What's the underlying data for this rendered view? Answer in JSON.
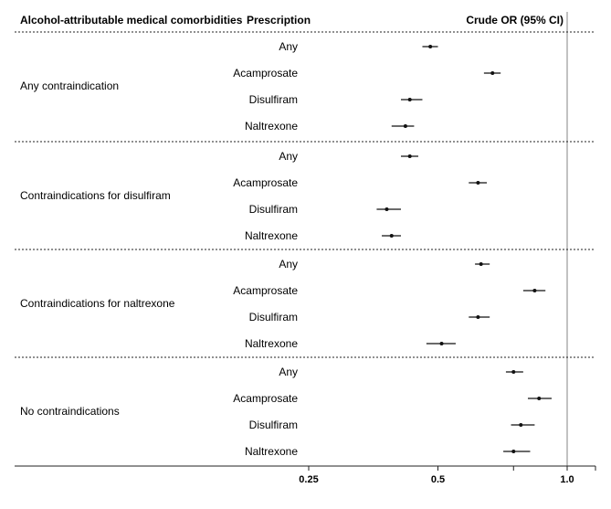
{
  "chart_data": {
    "type": "forest",
    "scale": "log",
    "headers": {
      "comorbidity": "Alcohol-attributable medical comorbidities",
      "prescription": "Prescription",
      "estimate": "Crude OR (95% CI)"
    },
    "xlim": [
      0.25,
      1.3
    ],
    "x_ticks": [
      0.25,
      0.5,
      1.0
    ],
    "x_tick_labels": [
      "0.25",
      "0.5",
      "1.0"
    ],
    "reference_line": 1.0,
    "groups": [
      {
        "label": "Any contraindication",
        "rows": [
          {
            "prescription": "Any",
            "or": 0.48,
            "lo": 0.46,
            "hi": 0.5
          },
          {
            "prescription": "Acamprosate",
            "or": 0.67,
            "lo": 0.64,
            "hi": 0.7
          },
          {
            "prescription": "Disulfiram",
            "or": 0.43,
            "lo": 0.41,
            "hi": 0.46
          },
          {
            "prescription": "Naltrexone",
            "or": 0.42,
            "lo": 0.39,
            "hi": 0.44
          }
        ]
      },
      {
        "label": "Contraindications for disulfiram",
        "rows": [
          {
            "prescription": "Any",
            "or": 0.43,
            "lo": 0.41,
            "hi": 0.45
          },
          {
            "prescription": "Acamprosate",
            "or": 0.62,
            "lo": 0.59,
            "hi": 0.65
          },
          {
            "prescription": "Disulfiram",
            "or": 0.38,
            "lo": 0.36,
            "hi": 0.41
          },
          {
            "prescription": "Naltrexone",
            "or": 0.39,
            "lo": 0.37,
            "hi": 0.41
          }
        ]
      },
      {
        "label": "Contraindications for naltrexone",
        "rows": [
          {
            "prescription": "Any",
            "or": 0.63,
            "lo": 0.61,
            "hi": 0.66
          },
          {
            "prescription": "Acamprosate",
            "or": 0.84,
            "lo": 0.79,
            "hi": 0.89
          },
          {
            "prescription": "Disulfiram",
            "or": 0.62,
            "lo": 0.59,
            "hi": 0.66
          },
          {
            "prescription": "Naltrexone",
            "or": 0.51,
            "lo": 0.47,
            "hi": 0.55
          }
        ]
      },
      {
        "label": "No contraindications",
        "rows": [
          {
            "prescription": "Any",
            "or": 0.75,
            "lo": 0.72,
            "hi": 0.79
          },
          {
            "prescription": "Acamprosate",
            "or": 0.86,
            "lo": 0.81,
            "hi": 0.92
          },
          {
            "prescription": "Disulfiram",
            "or": 0.78,
            "lo": 0.74,
            "hi": 0.84
          },
          {
            "prescription": "Naltrexone",
            "or": 0.75,
            "lo": 0.71,
            "hi": 0.82
          }
        ]
      }
    ]
  }
}
